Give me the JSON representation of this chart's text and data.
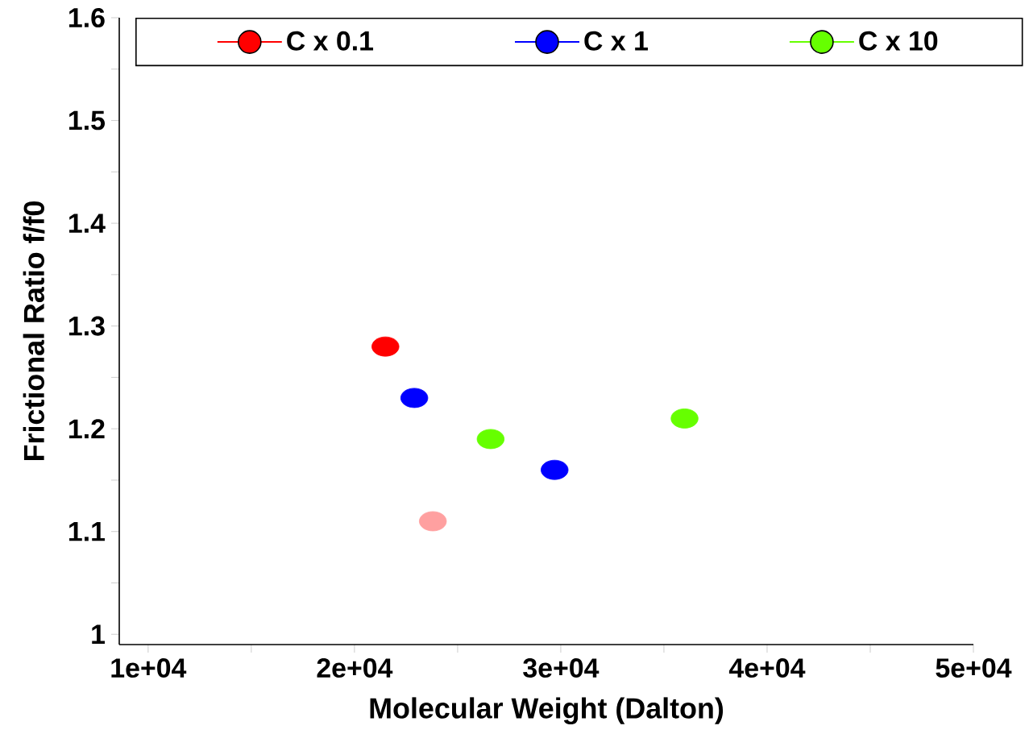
{
  "chart_data": {
    "type": "scatter",
    "xlabel": "Molecular Weight (Dalton)",
    "ylabel": "Frictional Ratio f/f0",
    "xlim": [
      8600,
      50000
    ],
    "ylim": [
      0.99,
      1.6
    ],
    "xticks": [
      {
        "value": 10000,
        "label": "1e+04"
      },
      {
        "value": 15000,
        "label": null
      },
      {
        "value": 20000,
        "label": "2e+04"
      },
      {
        "value": 25000,
        "label": null
      },
      {
        "value": 30000,
        "label": "3e+04"
      },
      {
        "value": 35000,
        "label": null
      },
      {
        "value": 40000,
        "label": "4e+04"
      },
      {
        "value": 45000,
        "label": null
      },
      {
        "value": 50000,
        "label": "5e+04"
      }
    ],
    "yticks": [
      1,
      {
        "value": 1.05,
        "label": null
      },
      1.1,
      {
        "value": 1.15,
        "label": null
      },
      1.2,
      {
        "value": 1.25,
        "label": null
      },
      1.3,
      {
        "value": 1.35,
        "label": null
      },
      1.4,
      {
        "value": 1.45,
        "label": null
      },
      1.5,
      {
        "value": 1.55,
        "label": null
      },
      1.6
    ],
    "grid": false,
    "legend": "top",
    "marker": "circle",
    "series": [
      {
        "name": "C x 0.1",
        "color": "#ff0000",
        "colors": [
          "#ff0000",
          "#ffa0a0"
        ],
        "x": [
          21500,
          23800
        ],
        "values": [
          1.28,
          1.11
        ]
      },
      {
        "name": "C x 1",
        "color": "#0000ff",
        "colors": [
          "#0000ff",
          "#0000ff"
        ],
        "x": [
          22900,
          29700
        ],
        "values": [
          1.23,
          1.16
        ]
      },
      {
        "name": "C x 10",
        "color": "#66ff00",
        "colors": [
          "#66ff00",
          "#66ff00"
        ],
        "x": [
          26600,
          36000
        ],
        "values": [
          1.19,
          1.21
        ]
      }
    ]
  }
}
